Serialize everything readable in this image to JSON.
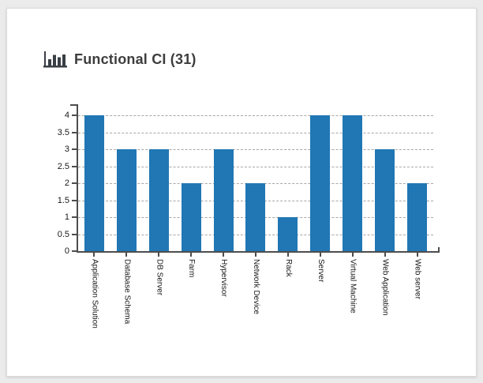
{
  "window": {
    "background": "#ebebeb",
    "card_background": "#ffffff"
  },
  "header": {
    "title": "Functional CI (31)",
    "icon": "bar-chart-icon",
    "title_color": "#3d3d3d"
  },
  "chart_data": {
    "type": "bar",
    "title": "Functional CI (31)",
    "categories": [
      "Application Solution",
      "Database Schema",
      "DB Server",
      "Farm",
      "Hypervisor",
      "Network Device",
      "Rack",
      "Server",
      "Virtual Machine",
      "Web Application",
      "Web server"
    ],
    "values": [
      4,
      3,
      3,
      2,
      3,
      2,
      1,
      4,
      4,
      3,
      2
    ],
    "total": 31,
    "yticks": [
      0,
      0.5,
      1,
      1.5,
      2,
      2.5,
      3,
      3.5,
      4
    ],
    "ylim": [
      0,
      4.33
    ],
    "xlabel": "",
    "ylabel": "",
    "x_label_rotation": 90,
    "grid": "horizontal-dashed",
    "legend": "none",
    "bar_color": "#2077b4",
    "axis_color": "#4d4d4d",
    "grid_color": "#a6a6a6",
    "label_color": "#1a1a1a"
  }
}
